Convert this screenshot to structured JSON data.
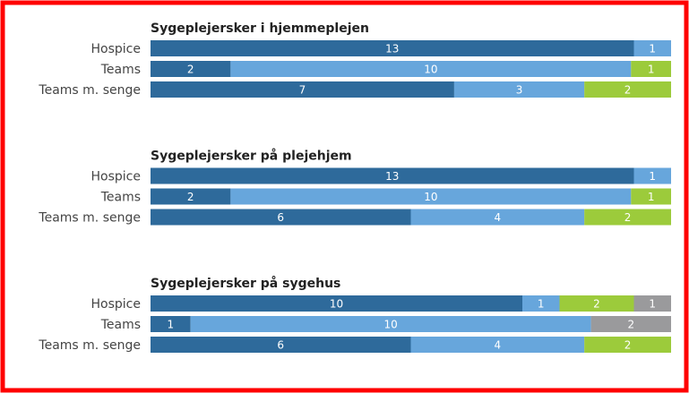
{
  "chart_data": [
    {
      "type": "bar",
      "orientation": "horizontal",
      "stacked": "percent",
      "title": "Sygeplejersker i hjemmeplejen",
      "categories": [
        "Hospice",
        "Teams",
        "Teams m. senge"
      ],
      "series": [
        {
          "color": "#2e6a9b",
          "values": [
            13,
            2,
            7
          ]
        },
        {
          "color": "#67a6dc",
          "values": [
            1,
            10,
            3
          ]
        },
        {
          "color": "#9ccb3b",
          "values": [
            null,
            1,
            2
          ]
        }
      ]
    },
    {
      "type": "bar",
      "orientation": "horizontal",
      "stacked": "percent",
      "title": "Sygeplejersker på plejehjem",
      "categories": [
        "Hospice",
        "Teams",
        "Teams m. senge"
      ],
      "series": [
        {
          "color": "#2e6a9b",
          "values": [
            13,
            2,
            6
          ]
        },
        {
          "color": "#67a6dc",
          "values": [
            1,
            10,
            4
          ]
        },
        {
          "color": "#9ccb3b",
          "values": [
            null,
            1,
            2
          ]
        }
      ]
    },
    {
      "type": "bar",
      "orientation": "horizontal",
      "stacked": "percent",
      "title": "Sygeplejersker på sygehus",
      "categories": [
        "Hospice",
        "Teams",
        "Teams m. senge"
      ],
      "series": [
        {
          "color": "#2e6a9b",
          "values": [
            10,
            1,
            6
          ]
        },
        {
          "color": "#67a6dc",
          "values": [
            1,
            10,
            4
          ]
        },
        {
          "color": "#9ccb3b",
          "values": [
            2,
            null,
            2
          ]
        },
        {
          "color": "#9a9a9c",
          "values": [
            1,
            2,
            null
          ]
        }
      ]
    }
  ]
}
